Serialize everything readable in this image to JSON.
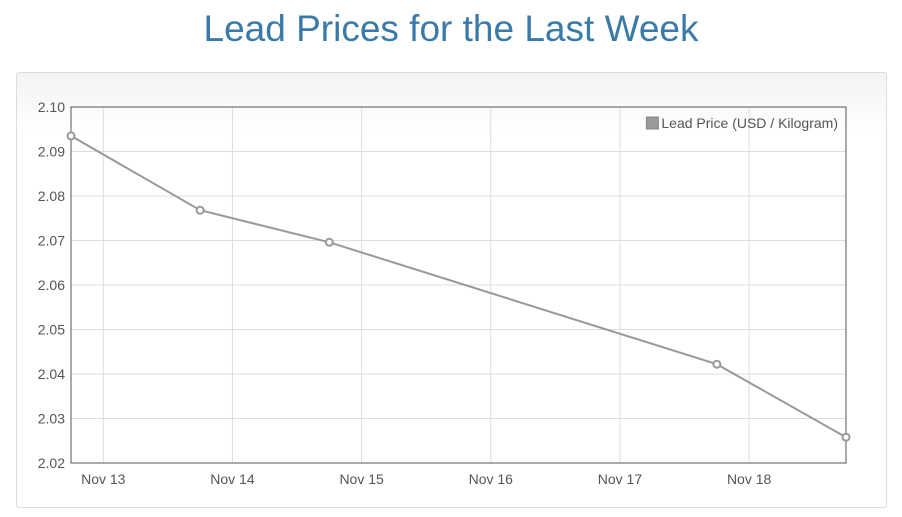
{
  "page": {
    "title": "Lead Prices for the Last Week"
  },
  "chart_data": {
    "type": "line",
    "title": "Lead Prices for the Last Week",
    "xlabel": "",
    "ylabel": "",
    "x_ticks": [
      "Nov 13",
      "Nov 14",
      "Nov 15",
      "Nov 16",
      "Nov 17",
      "Nov 18"
    ],
    "y_ticks": [
      "2.02",
      "2.03",
      "2.04",
      "2.05",
      "2.06",
      "2.07",
      "2.08",
      "2.09",
      "2.10"
    ],
    "ylim": [
      2.02,
      2.1
    ],
    "xlim_days": [
      12.75,
      18.75
    ],
    "grid": true,
    "legend_position": "top-right",
    "series": [
      {
        "name": "Lead Price (USD / Kilogram)",
        "color": "#999999",
        "points": [
          {
            "x": "Nov 12",
            "x_day": 12.75,
            "y": 2.0935
          },
          {
            "x": "Nov 13",
            "x_day": 13.75,
            "y": 2.0768
          },
          {
            "x": "Nov 14",
            "x_day": 14.75,
            "y": 2.0696
          },
          {
            "x": "Nov 17",
            "x_day": 17.75,
            "y": 2.0422
          },
          {
            "x": "Nov 18",
            "x_day": 18.75,
            "y": 2.0258
          }
        ]
      }
    ]
  }
}
